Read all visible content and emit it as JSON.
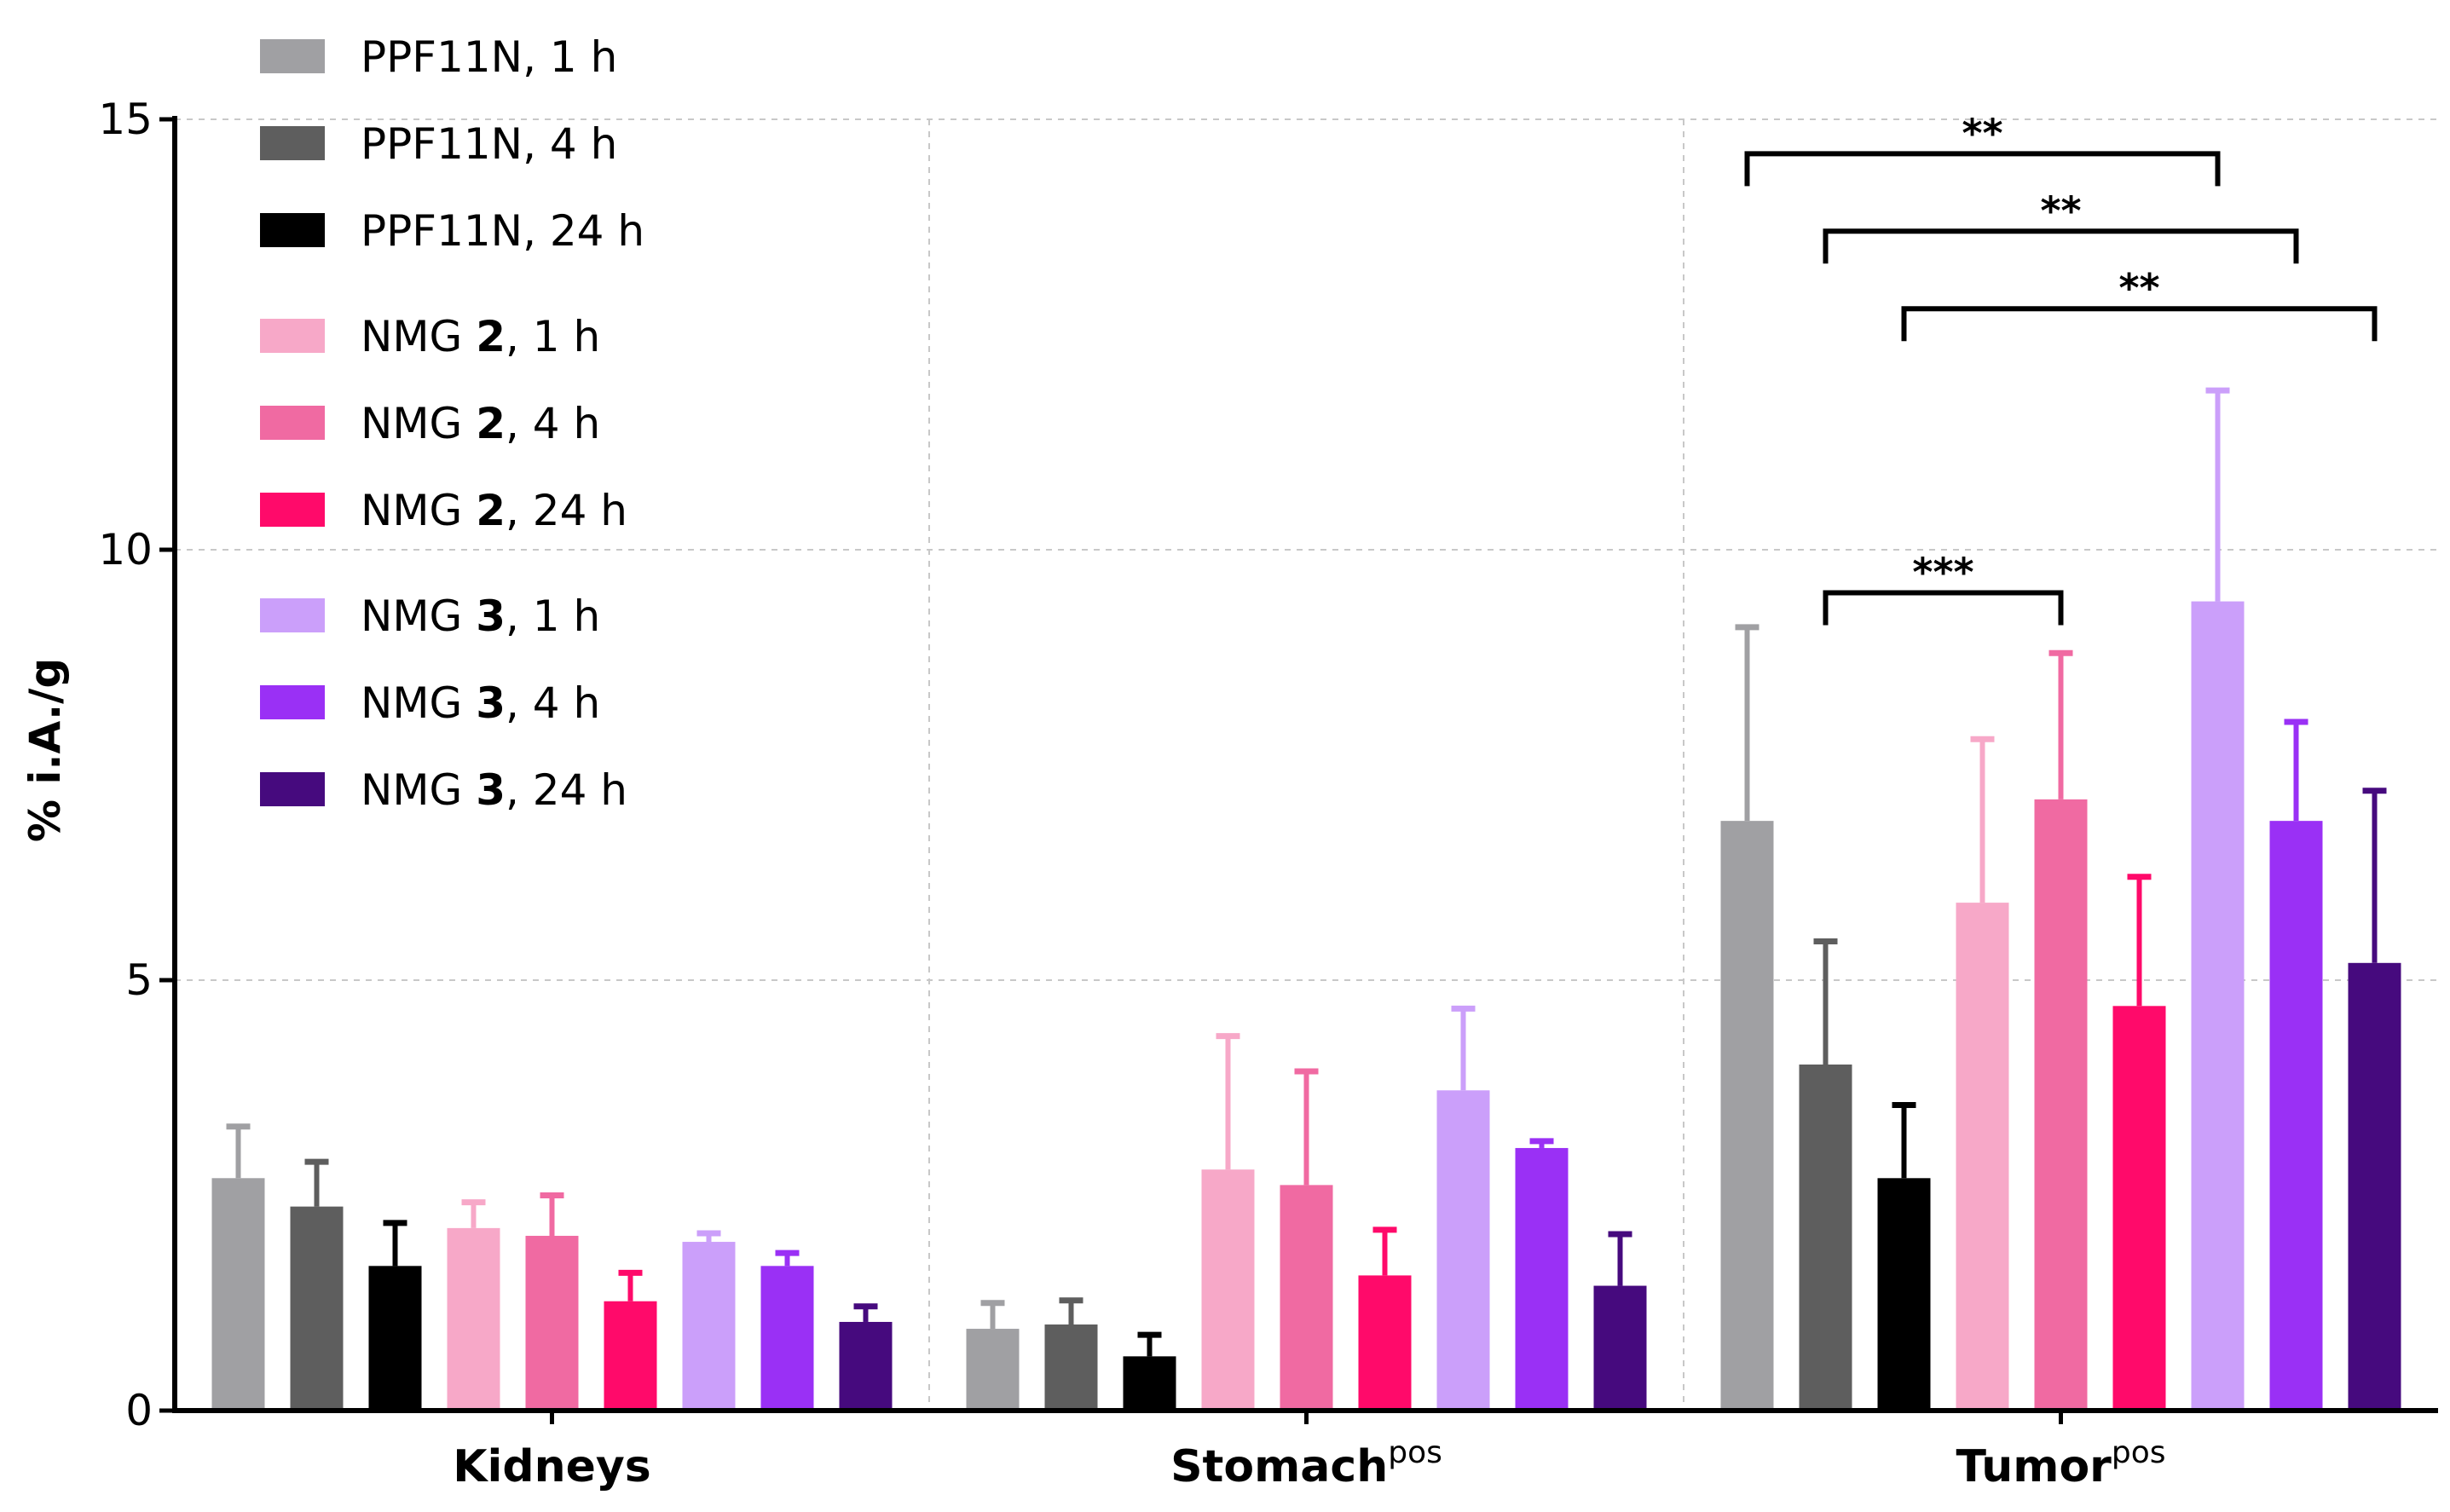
{
  "chart_data": {
    "type": "bar",
    "ylabel": "% i.A./g",
    "ylim": [
      0,
      15
    ],
    "yticks": [
      0,
      5,
      10,
      15
    ],
    "grid": "dashed",
    "legend_position": "top-left",
    "categories": [
      {
        "label": "Kidneys",
        "sup": ""
      },
      {
        "label": "Stomach",
        "sup": "pos"
      },
      {
        "label": "Tumor",
        "sup": "pos"
      }
    ],
    "series": [
      {
        "name": "PPF11N, 1 h",
        "name_pre": "PPF11N, 1 h",
        "name_bold": "",
        "name_post": "",
        "color": "#a0a0a3",
        "values": [
          2.7,
          0.95,
          6.85
        ],
        "errors": [
          0.6,
          0.3,
          2.25
        ]
      },
      {
        "name": "PPF11N, 4 h",
        "name_pre": "PPF11N, 4 h",
        "name_bold": "",
        "name_post": "",
        "color": "#5e5e5e",
        "values": [
          2.37,
          1.0,
          4.02
        ],
        "errors": [
          0.52,
          0.28,
          1.43
        ]
      },
      {
        "name": "PPF11N, 24 h",
        "name_pre": "PPF11N, 24 h",
        "name_bold": "",
        "name_post": "",
        "color": "#000000",
        "values": [
          1.68,
          0.63,
          2.7
        ],
        "errors": [
          0.5,
          0.25,
          0.85
        ]
      },
      {
        "name": "NMG 2, 1 h",
        "name_pre": "NMG ",
        "name_bold": "2",
        "name_post": ", 1 h",
        "color": "#f7a8c8",
        "values": [
          2.12,
          2.8,
          5.9
        ],
        "errors": [
          0.3,
          1.55,
          1.9
        ]
      },
      {
        "name": "NMG 2, 4 h",
        "name_pre": "NMG ",
        "name_bold": "2",
        "name_post": ", 4 h",
        "color": "#f06aa2",
        "values": [
          2.03,
          2.62,
          7.1
        ],
        "errors": [
          0.47,
          1.32,
          1.7
        ]
      },
      {
        "name": "NMG 2, 24 h",
        "name_pre": "NMG ",
        "name_bold": "2",
        "name_post": ", 24 h",
        "color": "#ff0a6a",
        "values": [
          1.27,
          1.57,
          4.7
        ],
        "errors": [
          0.33,
          0.53,
          1.5
        ]
      },
      {
        "name": "NMG 3, 1 h",
        "name_pre": "NMG ",
        "name_bold": "3",
        "name_post": ", 1 h",
        "color": "#cb9ffa",
        "values": [
          1.96,
          3.72,
          9.4
        ],
        "errors": [
          0.1,
          0.95,
          2.45
        ]
      },
      {
        "name": "NMG 3, 4 h",
        "name_pre": "NMG ",
        "name_bold": "3",
        "name_post": ", 4 h",
        "color": "#9a30f5",
        "values": [
          1.68,
          3.05,
          6.85
        ],
        "errors": [
          0.15,
          0.08,
          1.15
        ]
      },
      {
        "name": "NMG 3, 24 h",
        "name_pre": "NMG ",
        "name_bold": "3",
        "name_post": ", 24 h",
        "color": "#460a7e",
        "values": [
          1.03,
          1.45,
          5.2
        ],
        "errors": [
          0.18,
          0.6,
          2.0
        ]
      }
    ],
    "significance": [
      {
        "category": 2,
        "from": 0,
        "to": 6,
        "y": 14.6,
        "label": "**"
      },
      {
        "category": 2,
        "from": 1,
        "to": 7,
        "y": 13.7,
        "label": "**"
      },
      {
        "category": 2,
        "from": 2,
        "to": 8,
        "y": 12.8,
        "label": "**"
      },
      {
        "category": 2,
        "from": 1,
        "to": 4,
        "y": 9.5,
        "label": "***"
      }
    ]
  }
}
